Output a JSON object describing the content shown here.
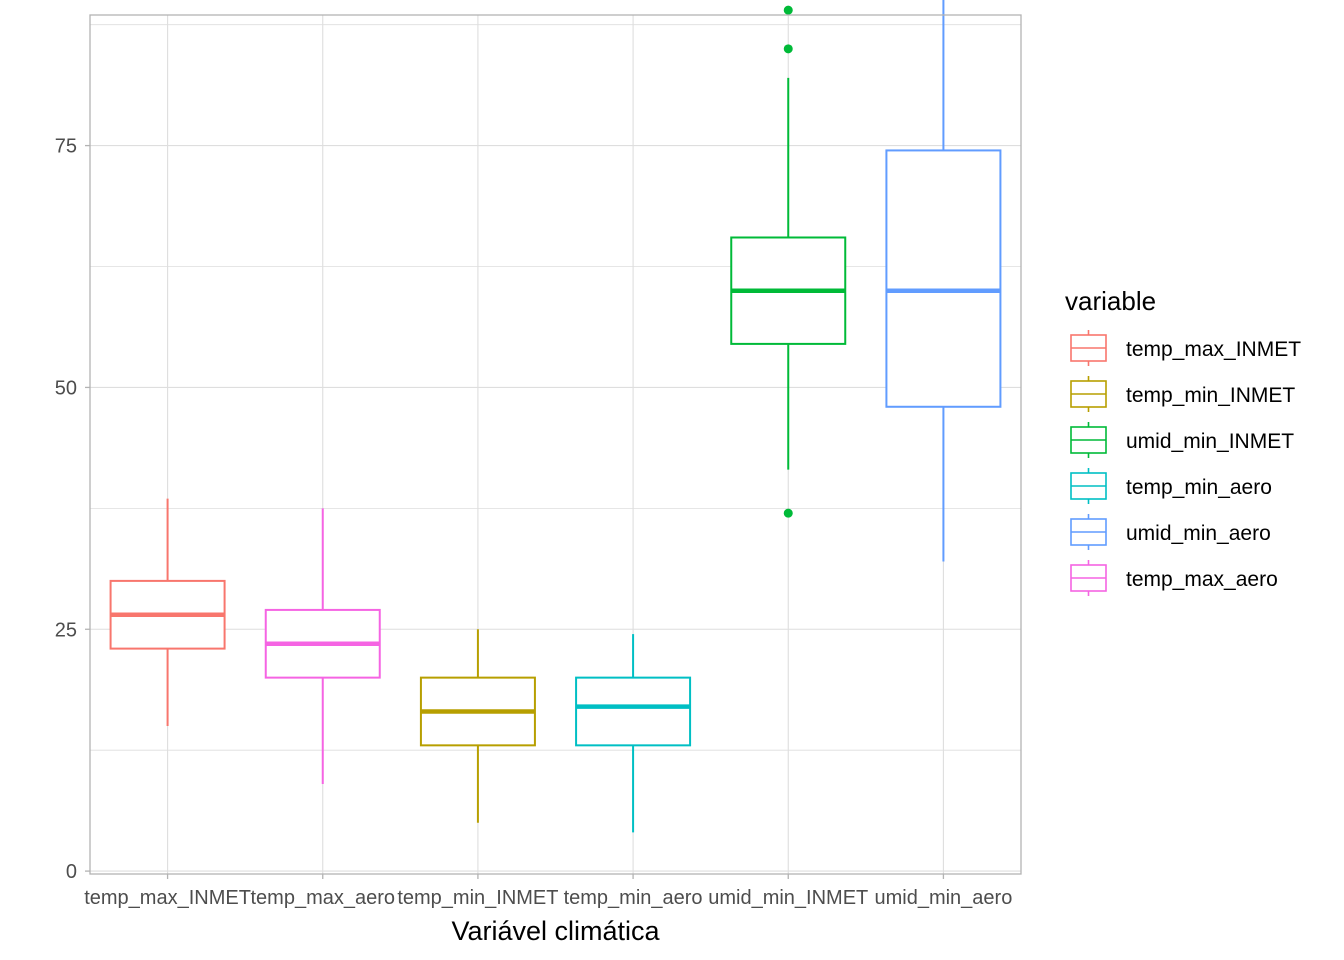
{
  "chart_data": {
    "type": "boxplot",
    "title": "",
    "xlabel": "Variável climática",
    "ylabel": "",
    "ylim": [
      -0.3,
      88.5
    ],
    "y_ticks": [
      0,
      25,
      50,
      75
    ],
    "grid": true,
    "legend_position": "right",
    "legend_title": "variable",
    "categories": [
      "temp_max_INMET",
      "temp_max_aero",
      "temp_min_INMET",
      "temp_min_aero",
      "umid_min_INMET",
      "umid_min_aero"
    ],
    "series": [
      {
        "name": "temp_max_INMET",
        "category": "temp_max_INMET",
        "color": "#F8766D",
        "min": 15,
        "q1": 23,
        "median": 26.5,
        "q3": 30,
        "max": 38.5,
        "outliers": []
      },
      {
        "name": "temp_max_aero",
        "category": "temp_max_aero",
        "color": "#F564E3",
        "min": 9,
        "q1": 20,
        "median": 23.5,
        "q3": 27,
        "max": 37.5,
        "outliers": []
      },
      {
        "name": "temp_min_INMET",
        "category": "temp_min_INMET",
        "color": "#B79F00",
        "min": 5,
        "q1": 13,
        "median": 16.5,
        "q3": 20,
        "max": 25,
        "outliers": []
      },
      {
        "name": "temp_min_aero",
        "category": "temp_min_aero",
        "color": "#00BFC4",
        "min": 4,
        "q1": 13,
        "median": 17,
        "q3": 20,
        "max": 24.5,
        "outliers": []
      },
      {
        "name": "umid_min_INMET",
        "category": "umid_min_INMET",
        "color": "#00BA38",
        "min": 41.5,
        "q1": 54.5,
        "median": 60,
        "q3": 65.5,
        "max": 82,
        "outliers": [
          89,
          85,
          37
        ]
      },
      {
        "name": "umid_min_aero",
        "category": "umid_min_aero",
        "color": "#619CFF",
        "min": 32,
        "q1": 48,
        "median": 60,
        "q3": 74.5,
        "max": 94,
        "outliers": []
      }
    ],
    "legend_order": [
      "temp_max_INMET",
      "temp_min_INMET",
      "umid_min_INMET",
      "temp_min_aero",
      "umid_min_aero",
      "temp_max_aero"
    ]
  },
  "colors": {
    "grid": "#dedede",
    "panel_border": "#b3b3b3",
    "tick": "#4d4d4d"
  }
}
